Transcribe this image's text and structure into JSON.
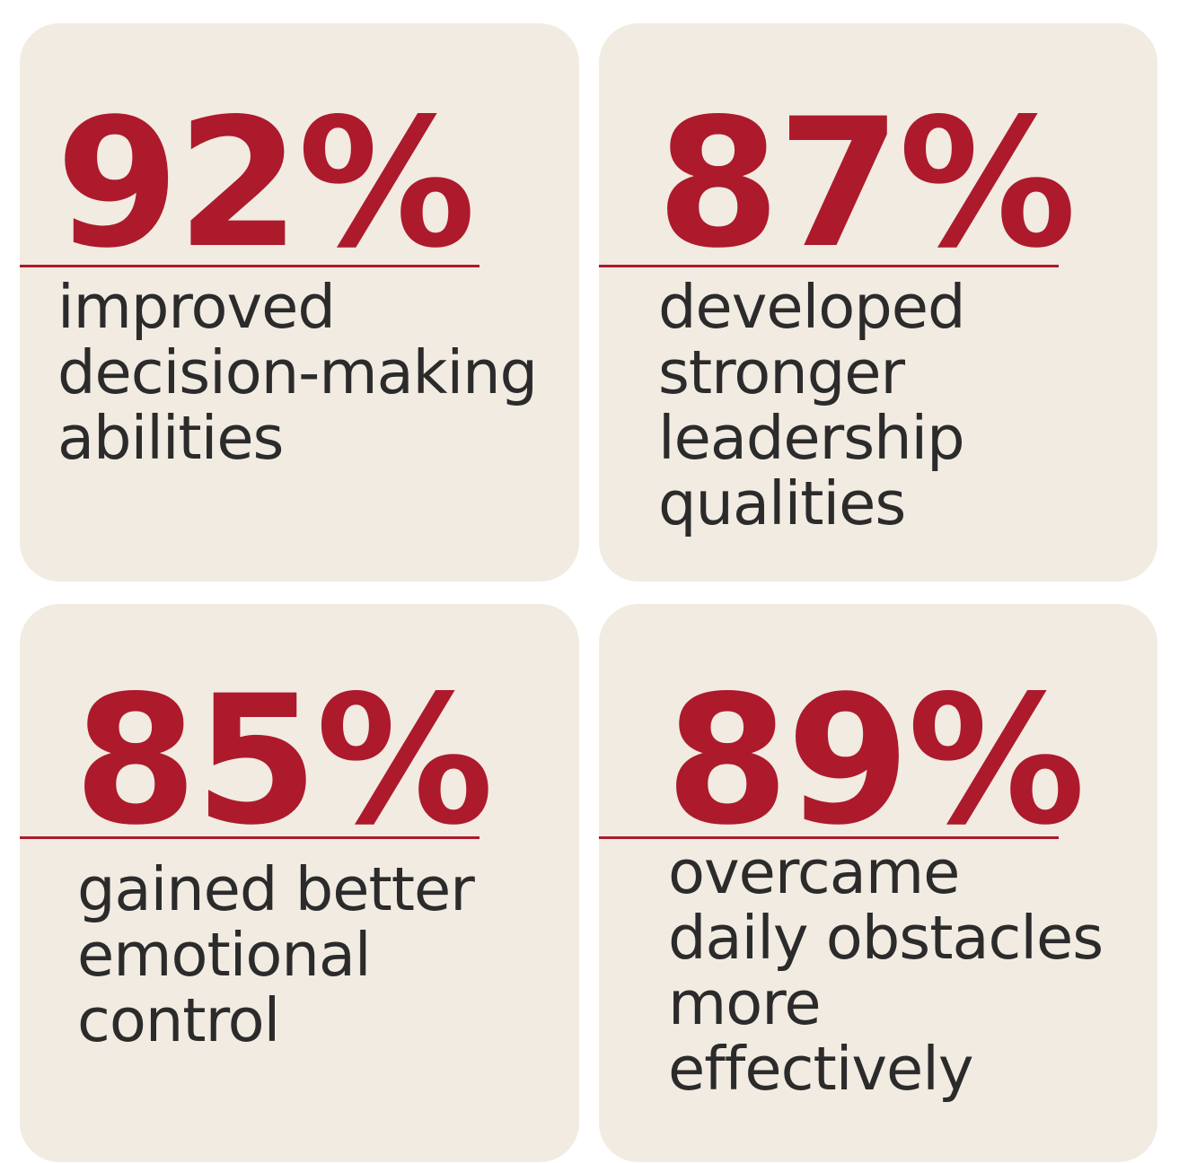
{
  "stats": [
    {
      "value": "92%",
      "description": "improved\ndecision-making\nabilities"
    },
    {
      "value": "87%",
      "description": "developed\nstronger\nleadership\nqualities"
    },
    {
      "value": "85%",
      "description": "gained better\nemotional\ncontrol"
    },
    {
      "value": "89%",
      "description": "overcame\ndaily obstacles\nmore\neffectively"
    }
  ],
  "colors": {
    "accent": "#ad1a2c",
    "card_background": "#f1ebe1",
    "text": "#2b2b2b",
    "page_background": "#ffffff"
  }
}
